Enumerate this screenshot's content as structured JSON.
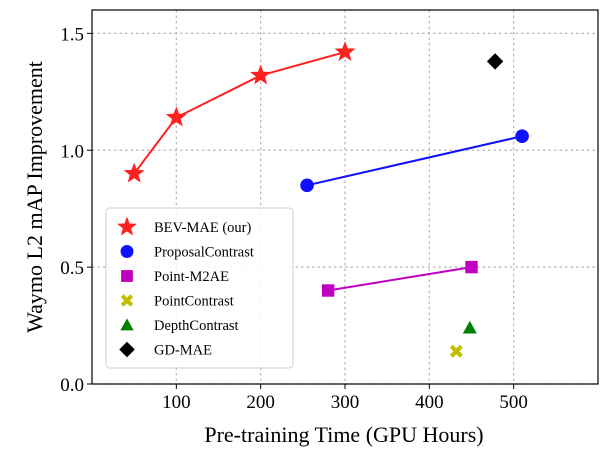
{
  "chart_data": {
    "type": "scatter",
    "title": "",
    "xlabel": "Pre-training Time (GPU Hours)",
    "ylabel": "Waymo L2 mAP Improvement",
    "xlim": [
      0,
      600
    ],
    "ylim": [
      0,
      1.6
    ],
    "grid": true,
    "legend_position": "lower-left",
    "xticks": [
      100,
      200,
      300,
      400,
      500
    ],
    "xtick_labels": [
      "100",
      "200",
      "300",
      "400",
      "500"
    ],
    "yticks": [
      0.0,
      0.5,
      1.0,
      1.5
    ],
    "ytick_labels": [
      "0.0",
      "0.5",
      "1.0",
      "1.5"
    ],
    "series": [
      {
        "name": "BEV-MAE (our)",
        "color": "#ff2020",
        "marker": "star",
        "line": true,
        "x": [
          50,
          100,
          200,
          300
        ],
        "y": [
          0.9,
          1.14,
          1.32,
          1.42
        ]
      },
      {
        "name": "ProposalContrast",
        "color": "#1010ff",
        "marker": "circle",
        "line": true,
        "x": [
          255,
          510
        ],
        "y": [
          0.85,
          1.06
        ]
      },
      {
        "name": "Point-M2AE",
        "color": "#c000c0",
        "marker": "square",
        "line": true,
        "x": [
          280,
          450
        ],
        "y": [
          0.4,
          0.5
        ]
      },
      {
        "name": "PointContrast",
        "color": "#bfbf00",
        "marker": "x",
        "line": false,
        "x": [
          432
        ],
        "y": [
          0.14
        ]
      },
      {
        "name": "DepthContrast",
        "color": "#008000",
        "marker": "triangle",
        "line": false,
        "x": [
          448
        ],
        "y": [
          0.24
        ]
      },
      {
        "name": "GD-MAE",
        "color": "#000000",
        "marker": "diamond",
        "line": false,
        "x": [
          478
        ],
        "y": [
          1.38
        ]
      }
    ]
  }
}
